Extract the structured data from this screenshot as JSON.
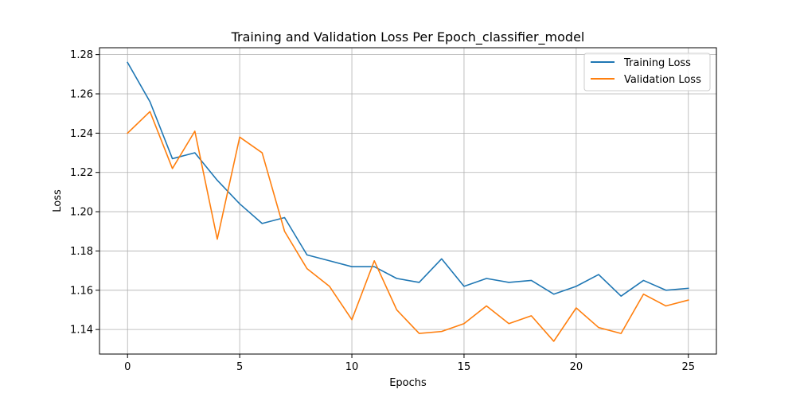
{
  "chart_data": {
    "type": "line",
    "title": "Training and Validation Loss Per Epoch_classifier_model",
    "xlabel": "Epochs",
    "ylabel": "Loss",
    "xlim": [
      -1.25,
      26.25
    ],
    "ylim": [
      1.1275,
      1.2835
    ],
    "x_ticks": [
      0,
      5,
      10,
      15,
      20,
      25
    ],
    "y_ticks": [
      1.14,
      1.16,
      1.18,
      1.2,
      1.22,
      1.24,
      1.26,
      1.28
    ],
    "x_tick_labels": [
      "0",
      "5",
      "10",
      "15",
      "20",
      "25"
    ],
    "y_tick_labels": [
      "1.14",
      "1.16",
      "1.18",
      "1.20",
      "1.22",
      "1.24",
      "1.26",
      "1.28"
    ],
    "grid": true,
    "legend_position": "top-right",
    "x": [
      0,
      1,
      2,
      3,
      4,
      5,
      6,
      7,
      8,
      9,
      10,
      11,
      12,
      13,
      14,
      15,
      16,
      17,
      18,
      19,
      20,
      21,
      22,
      23,
      24,
      25
    ],
    "series": [
      {
        "name": "Training Loss",
        "color": "#1f77b4",
        "values": [
          1.276,
          1.256,
          1.227,
          1.23,
          1.216,
          1.204,
          1.194,
          1.197,
          1.178,
          1.175,
          1.172,
          1.172,
          1.166,
          1.164,
          1.176,
          1.162,
          1.166,
          1.164,
          1.165,
          1.158,
          1.162,
          1.168,
          1.157,
          1.165,
          1.16,
          1.161
        ]
      },
      {
        "name": "Validation Loss",
        "color": "#ff7f0e",
        "values": [
          1.24,
          1.251,
          1.222,
          1.241,
          1.186,
          1.238,
          1.23,
          1.19,
          1.171,
          1.162,
          1.145,
          1.175,
          1.15,
          1.138,
          1.139,
          1.143,
          1.152,
          1.143,
          1.147,
          1.134,
          1.151,
          1.141,
          1.138,
          1.158,
          1.152,
          1.155
        ]
      }
    ]
  }
}
